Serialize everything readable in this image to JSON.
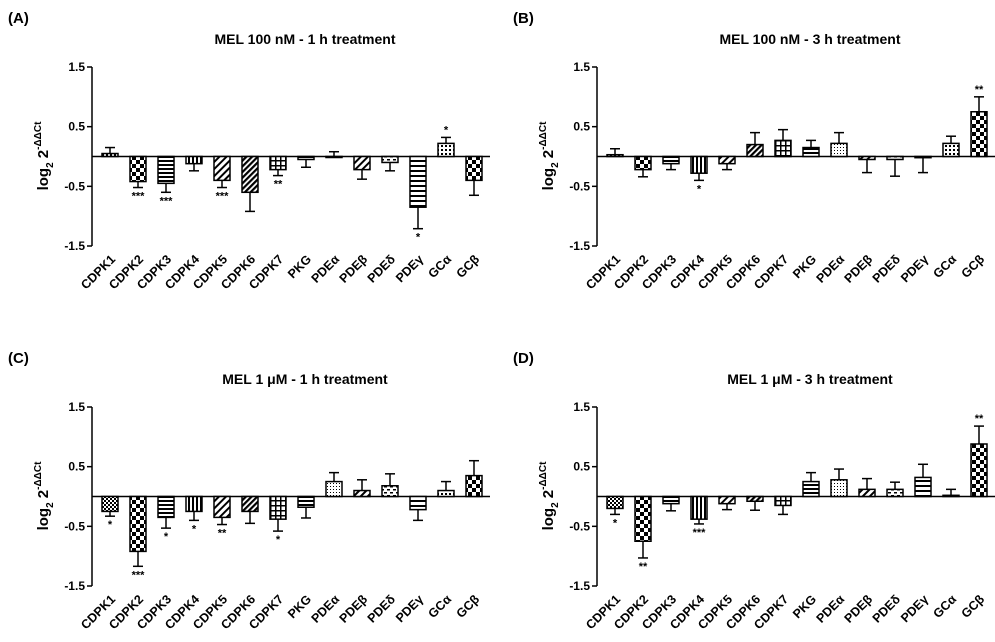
{
  "chart_data": [
    {
      "type": "bar",
      "panel_label": "(A)",
      "title": "MEL 100 nM - 1 h treatment",
      "ylabel": "log2 2-ΔΔCt",
      "ylim": [
        -1.5,
        1.5
      ],
      "yticks": [
        "1.5",
        "0.5",
        "-0.5",
        "-1.5"
      ],
      "categories": [
        "CDPK1",
        "CDPK2",
        "CDPK3",
        "CDPK4",
        "CDPK5",
        "CDPK6",
        "CDPK7",
        "PKG",
        "PDEα",
        "PDEβ",
        "PDEδ",
        "PDEγ",
        "GCα",
        "GCβ"
      ],
      "values": [
        0.05,
        -0.42,
        -0.45,
        -0.12,
        -0.4,
        -0.6,
        -0.22,
        -0.05,
        0.0,
        -0.22,
        -0.1,
        -0.85,
        0.22,
        -0.4
      ],
      "errors": [
        0.1,
        0.1,
        0.15,
        0.12,
        0.12,
        0.32,
        0.1,
        0.13,
        0.08,
        0.16,
        0.14,
        0.36,
        0.1,
        0.25
      ],
      "significance": [
        "",
        "***",
        "***",
        "",
        "***",
        "",
        "**",
        "",
        "",
        "",
        "",
        "*",
        "*",
        ""
      ]
    },
    {
      "type": "bar",
      "panel_label": "(B)",
      "title": "MEL 100 nM - 3 h treatment",
      "ylabel": "log2 2-ΔΔCt",
      "ylim": [
        -1.5,
        1.5
      ],
      "yticks": [
        "1.5",
        "0.5",
        "-0.5",
        "-1.5"
      ],
      "categories": [
        "CDPK1",
        "CDPK2",
        "CDPK3",
        "CDPK4",
        "CDPK5",
        "CDPK6",
        "CDPK7",
        "PKG",
        "PDEα",
        "PDEβ",
        "PDEδ",
        "PDEγ",
        "GCα",
        "GCβ"
      ],
      "values": [
        0.03,
        -0.22,
        -0.12,
        -0.28,
        -0.12,
        0.2,
        0.27,
        0.15,
        0.22,
        -0.05,
        -0.05,
        -0.02,
        0.22,
        0.75
      ],
      "errors": [
        0.1,
        0.12,
        0.1,
        0.12,
        0.1,
        0.2,
        0.18,
        0.12,
        0.18,
        0.22,
        0.28,
        0.25,
        0.12,
        0.25
      ],
      "significance": [
        "",
        "",
        "",
        "*",
        "",
        "",
        "",
        "",
        "",
        "",
        "",
        "",
        "",
        "**"
      ]
    },
    {
      "type": "bar",
      "panel_label": "(C)",
      "title": "MEL 1 μM - 1 h treatment",
      "ylabel": "log2 2-ΔΔCt",
      "ylim": [
        -1.5,
        1.5
      ],
      "yticks": [
        "1.5",
        "0.5",
        "-0.5",
        "-1.5"
      ],
      "categories": [
        "CDPK1",
        "CDPK2",
        "CDPK3",
        "CDPK4",
        "CDPK5",
        "CDPK6",
        "CDPK7",
        "PKG",
        "PDEα",
        "PDEβ",
        "PDEδ",
        "PDEγ",
        "GCα",
        "GCβ"
      ],
      "values": [
        -0.25,
        -0.92,
        -0.35,
        -0.25,
        -0.35,
        -0.25,
        -0.38,
        -0.18,
        0.25,
        0.1,
        0.18,
        -0.22,
        0.1,
        0.35
      ],
      "errors": [
        0.08,
        0.25,
        0.18,
        0.15,
        0.12,
        0.2,
        0.2,
        0.18,
        0.15,
        0.18,
        0.2,
        0.18,
        0.15,
        0.25
      ],
      "significance": [
        "*",
        "***",
        "*",
        "*",
        "**",
        "",
        "*",
        "",
        "",
        "",
        "",
        "",
        "",
        ""
      ]
    },
    {
      "type": "bar",
      "panel_label": "(D)",
      "title": "MEL 1 μM - 3 h treatment",
      "ylabel": "log2 2-ΔΔCt",
      "ylim": [
        -1.5,
        1.5
      ],
      "yticks": [
        "1.5",
        "0.5",
        "-0.5",
        "-1.5"
      ],
      "categories": [
        "CDPK1",
        "CDPK2",
        "CDPK3",
        "CDPK4",
        "CDPK5",
        "CDPK6",
        "CDPK7",
        "PKG",
        "PDEα",
        "PDEβ",
        "PDEδ",
        "PDEγ",
        "GCα",
        "GCβ"
      ],
      "values": [
        -0.2,
        -0.75,
        -0.12,
        -0.38,
        -0.12,
        -0.08,
        -0.15,
        0.25,
        0.28,
        0.12,
        0.12,
        0.32,
        0.02,
        0.88
      ],
      "errors": [
        0.1,
        0.28,
        0.12,
        0.08,
        0.1,
        0.15,
        0.15,
        0.15,
        0.18,
        0.18,
        0.12,
        0.22,
        0.1,
        0.3
      ],
      "significance": [
        "*",
        "**",
        "",
        "***",
        "",
        "",
        "",
        "",
        "",
        "",
        "",
        "",
        "",
        "**"
      ]
    }
  ]
}
